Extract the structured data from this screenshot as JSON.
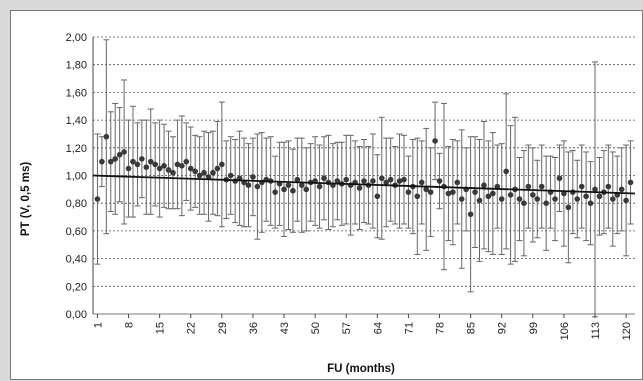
{
  "chart_data": {
    "type": "scatter",
    "xlabel": "FU (months)",
    "ylabel": "PT (V, 0,5 ms)",
    "ylim": [
      0,
      2
    ],
    "xlim": [
      0,
      122
    ],
    "y_ticks": [
      "0,00",
      "0,20",
      "0,40",
      "0,60",
      "0,80",
      "1,00",
      "1,20",
      "1,40",
      "1,60",
      "1,80",
      "2,00"
    ],
    "x_ticks": [
      "1",
      "8",
      "15",
      "22",
      "29",
      "36",
      "43",
      "50",
      "57",
      "64",
      "71",
      "78",
      "85",
      "92",
      "99",
      "106",
      "113",
      "120"
    ],
    "grid": true,
    "trend_line": {
      "x": [
        0,
        122
      ],
      "y": [
        1.0,
        0.87
      ]
    },
    "series": [
      {
        "x": [
          1,
          2,
          3,
          4,
          5,
          6,
          7,
          8,
          9,
          10,
          11,
          12,
          13,
          14,
          15,
          16,
          17,
          18,
          19,
          20,
          21,
          22,
          23,
          24,
          25,
          26,
          27,
          28,
          29,
          30,
          31,
          32,
          33,
          34,
          35,
          36,
          37,
          38,
          39,
          40,
          41,
          42,
          43,
          44,
          45,
          46,
          47,
          48,
          49,
          50,
          51,
          52,
          53,
          54,
          55,
          56,
          57,
          58,
          59,
          60,
          61,
          62,
          63,
          64,
          65,
          66,
          67,
          68,
          69,
          70,
          71,
          72,
          73,
          74,
          75,
          76,
          77,
          78,
          79,
          80,
          81,
          82,
          83,
          84,
          85,
          86,
          87,
          88,
          89,
          90,
          91,
          92,
          93,
          94,
          95,
          96,
          97,
          98,
          99,
          100,
          101,
          102,
          103,
          104,
          105,
          106,
          107,
          108,
          109,
          110,
          111,
          112,
          113,
          114,
          115,
          116,
          117,
          118,
          119,
          120,
          121
        ],
        "values": [
          0.83,
          1.1,
          1.28,
          1.1,
          1.12,
          1.15,
          1.17,
          1.05,
          1.1,
          1.08,
          1.12,
          1.06,
          1.1,
          1.08,
          1.05,
          1.07,
          1.04,
          1.02,
          1.08,
          1.07,
          1.1,
          1.05,
          1.03,
          1.0,
          1.02,
          0.99,
          1.02,
          1.05,
          1.08,
          0.97,
          1.0,
          0.96,
          0.98,
          0.95,
          0.93,
          0.99,
          0.92,
          0.95,
          0.97,
          0.96,
          0.88,
          0.94,
          0.9,
          0.93,
          0.89,
          0.97,
          0.93,
          0.9,
          0.95,
          0.96,
          0.92,
          0.98,
          0.95,
          0.93,
          0.96,
          0.94,
          0.97,
          0.93,
          0.95,
          0.91,
          0.96,
          0.93,
          0.96,
          0.85,
          0.98,
          0.95,
          0.97,
          0.93,
          0.96,
          0.97,
          0.88,
          0.92,
          0.85,
          0.95,
          0.9,
          0.88,
          1.25,
          0.96,
          0.92,
          0.87,
          0.88,
          0.95,
          0.83,
          0.9,
          0.72,
          0.88,
          0.82,
          0.93,
          0.85,
          0.87,
          0.92,
          0.83,
          1.03,
          0.86,
          0.9,
          0.83,
          0.8,
          0.92,
          0.86,
          0.83,
          0.92,
          0.8,
          0.88,
          0.83,
          0.98,
          0.87,
          0.77,
          0.88,
          0.83,
          0.92,
          0.85,
          0.8,
          0.9,
          0.85,
          0.88,
          0.92,
          0.83,
          0.86,
          0.9,
          0.82,
          0.95
        ],
        "errors": [
          0.47,
          0.18,
          0.7,
          0.36,
          0.4,
          0.34,
          0.52,
          0.35,
          0.4,
          0.3,
          0.28,
          0.34,
          0.38,
          0.3,
          0.35,
          0.3,
          0.28,
          0.26,
          0.32,
          0.36,
          0.28,
          0.3,
          0.26,
          0.28,
          0.3,
          0.32,
          0.3,
          0.34,
          0.45,
          0.28,
          0.28,
          0.3,
          0.34,
          0.32,
          0.3,
          0.28,
          0.38,
          0.36,
          0.3,
          0.32,
          0.26,
          0.3,
          0.34,
          0.32,
          0.3,
          0.3,
          0.34,
          0.3,
          0.28,
          0.32,
          0.3,
          0.3,
          0.34,
          0.3,
          0.28,
          0.3,
          0.32,
          0.36,
          0.3,
          0.3,
          0.3,
          0.28,
          0.34,
          0.3,
          0.44,
          0.32,
          0.3,
          0.28,
          0.34,
          0.32,
          0.26,
          0.34,
          0.42,
          0.3,
          0.44,
          0.32,
          0.28,
          0.2,
          0.6,
          0.34,
          0.38,
          0.3,
          0.5,
          0.3,
          0.56,
          0.4,
          0.44,
          0.46,
          0.4,
          0.44,
          0.3,
          0.4,
          0.56,
          0.5,
          0.52,
          0.3,
          0.38,
          0.3,
          0.34,
          0.28,
          0.3,
          0.34,
          0.26,
          0.3,
          0.24,
          0.38,
          0.4,
          0.3,
          0.28,
          0.3,
          0.32,
          0.3,
          0.92,
          0.28,
          0.3,
          0.3,
          0.34,
          0.28,
          0.3,
          0.4,
          0.3
        ]
      }
    ]
  }
}
